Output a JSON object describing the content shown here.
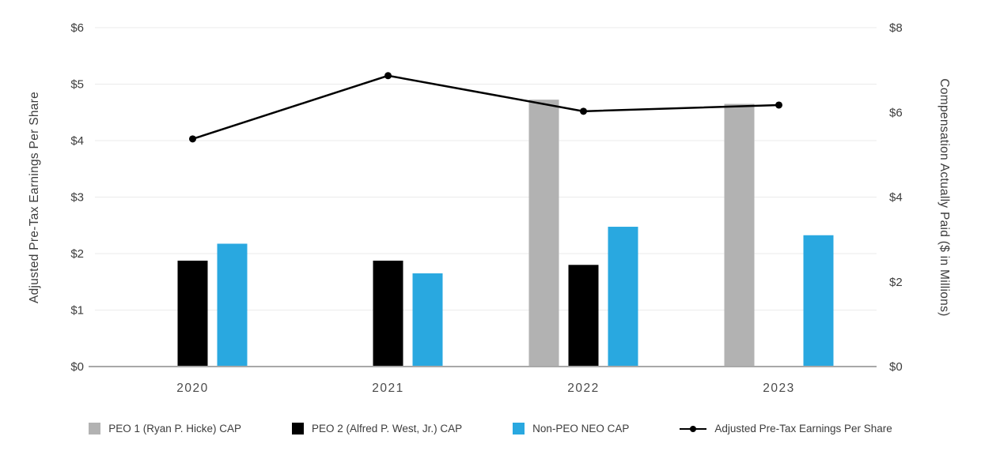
{
  "chart_data": {
    "type": "combo-bar-line",
    "categories": [
      "2020",
      "2021",
      "2022",
      "2023"
    ],
    "bar_series": [
      {
        "name": "PEO 1  (Ryan P. Hicke) CAP",
        "color": "#b2b2b2",
        "axis": "right",
        "values": [
          null,
          null,
          6.3,
          6.2
        ]
      },
      {
        "name": "PEO 2 (Alfred P. West, Jr.) CAP",
        "color": "#000000",
        "axis": "right",
        "values": [
          2.5,
          2.5,
          2.4,
          null
        ]
      },
      {
        "name": "Non-PEO NEO CAP",
        "color": "#29a8e0",
        "axis": "right",
        "values": [
          2.9,
          2.2,
          3.3,
          3.1
        ]
      }
    ],
    "line_series": {
      "name": "Adjusted Pre-Tax Earnings Per Share",
      "color": "#000000",
      "axis": "left",
      "values": [
        4.03,
        5.15,
        4.52,
        4.63
      ]
    },
    "left_axis": {
      "label": "Adjusted Pre-Tax Earnings Per Share",
      "min": 0,
      "max": 6,
      "step": 1,
      "tick_prefix": "$"
    },
    "right_axis": {
      "label": "Compensation Actually Paid ($ in Millions)",
      "min": 0,
      "max": 8,
      "step": 2,
      "tick_prefix": "$"
    },
    "grid": true,
    "legend_position": "bottom",
    "colors": {
      "gridline": "#ebebeb",
      "axis_line": "#a8a8a8",
      "tick_text": "#3c3c3c",
      "category_text": "#4a4a4a"
    }
  }
}
